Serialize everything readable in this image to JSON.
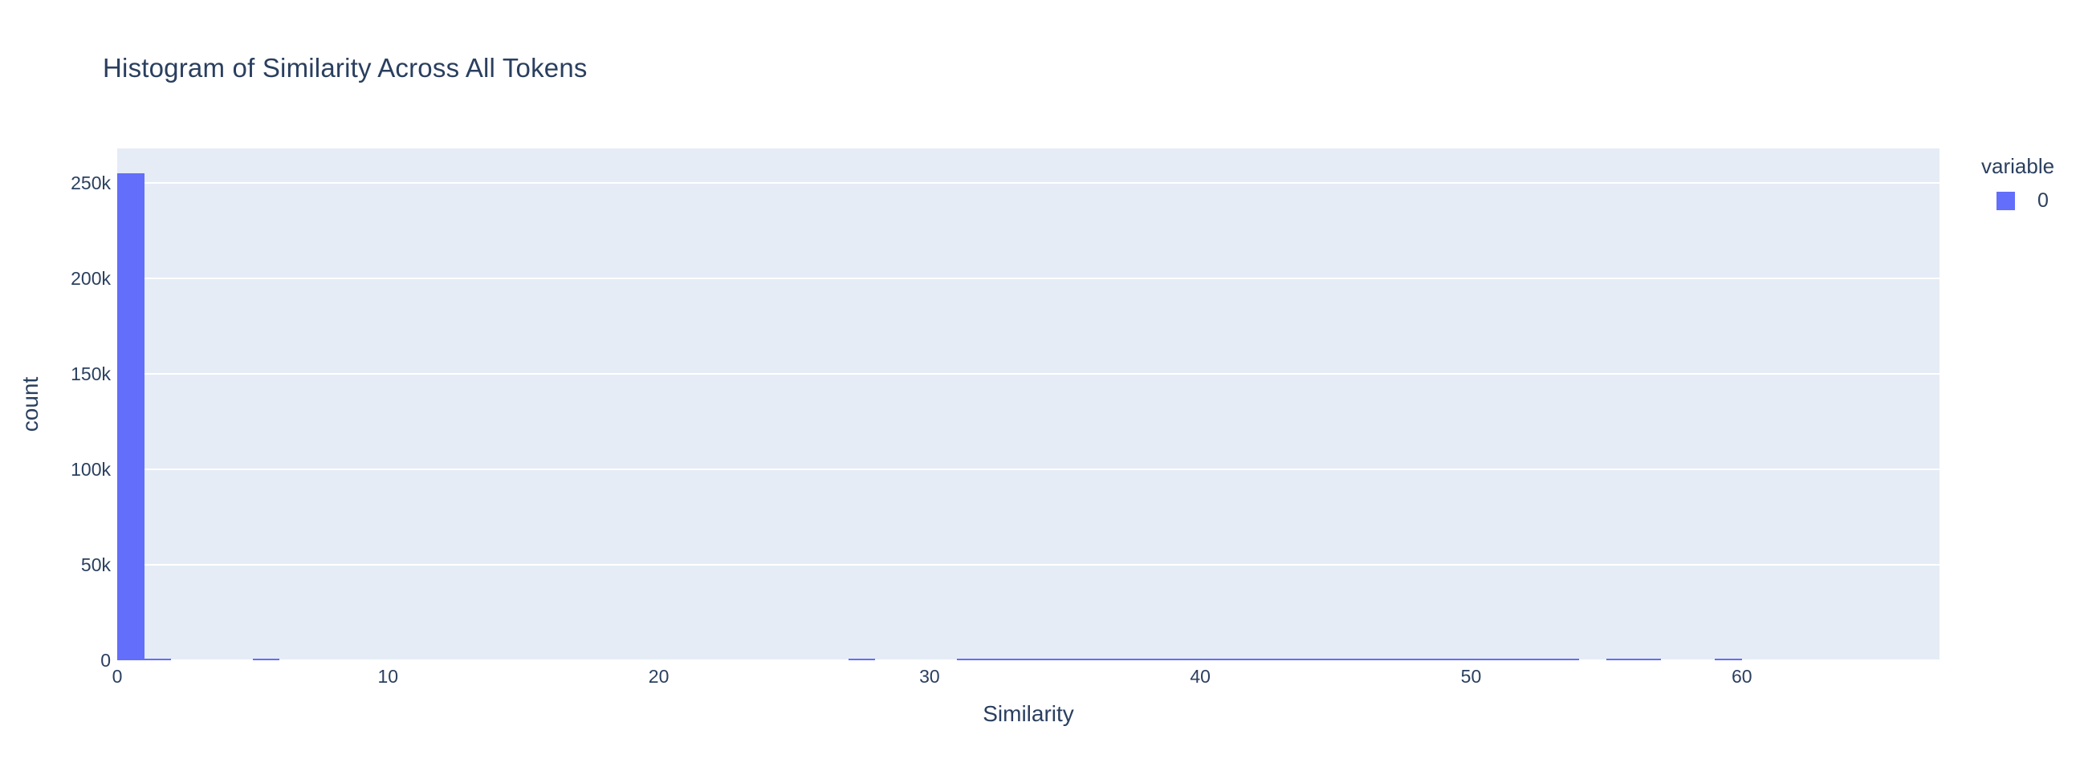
{
  "chart_data": {
    "type": "bar",
    "subtype": "histogram",
    "title": "Histogram of Similarity Across All Tokens",
    "xlabel": "Similarity",
    "ylabel": "count",
    "xlim": [
      0,
      67.3
    ],
    "ylim": [
      0,
      268000
    ],
    "grid": true,
    "legend_position": "top-right-outside",
    "legend": {
      "title": "variable",
      "entries": [
        {
          "label": "0",
          "color": "#636efa"
        }
      ]
    },
    "x_ticks": [
      0,
      10,
      20,
      30,
      40,
      50,
      60
    ],
    "x_tick_labels": [
      "0",
      "10",
      "20",
      "30",
      "40",
      "50",
      "60"
    ],
    "y_ticks": [
      0,
      50000,
      100000,
      150000,
      200000,
      250000
    ],
    "y_tick_labels": [
      "0",
      "50k",
      "100k",
      "150k",
      "200k",
      "250k"
    ],
    "colors": {
      "bar": "#636efa",
      "plot_background": "#e5ecf6",
      "gridline": "#ffffff",
      "text": "#2a3f5f",
      "page_background": "#ffffff"
    },
    "series_name": "0",
    "bins": [
      {
        "start": 0,
        "end": 1,
        "count": 255000
      },
      {
        "start": 1,
        "end": 2,
        "count": 1000
      },
      {
        "start": 5,
        "end": 6,
        "count": 900
      },
      {
        "start": 27,
        "end": 28,
        "count": 800
      },
      {
        "start": 31,
        "end": 32,
        "count": 700
      },
      {
        "start": 32,
        "end": 33,
        "count": 700
      },
      {
        "start": 33,
        "end": 34,
        "count": 700
      },
      {
        "start": 34,
        "end": 35,
        "count": 700
      },
      {
        "start": 35,
        "end": 36,
        "count": 700
      },
      {
        "start": 36,
        "end": 37,
        "count": 700
      },
      {
        "start": 37,
        "end": 38,
        "count": 700
      },
      {
        "start": 38,
        "end": 39,
        "count": 700
      },
      {
        "start": 39,
        "end": 40,
        "count": 700
      },
      {
        "start": 40,
        "end": 41,
        "count": 700
      },
      {
        "start": 41,
        "end": 42,
        "count": 700
      },
      {
        "start": 42,
        "end": 43,
        "count": 700
      },
      {
        "start": 43,
        "end": 44,
        "count": 700
      },
      {
        "start": 44,
        "end": 45,
        "count": 700
      },
      {
        "start": 45,
        "end": 46,
        "count": 700
      },
      {
        "start": 46,
        "end": 47,
        "count": 700
      },
      {
        "start": 47,
        "end": 48,
        "count": 700
      },
      {
        "start": 48,
        "end": 49,
        "count": 700
      },
      {
        "start": 49,
        "end": 50,
        "count": 700
      },
      {
        "start": 50,
        "end": 51,
        "count": 700
      },
      {
        "start": 51,
        "end": 52,
        "count": 700
      },
      {
        "start": 52,
        "end": 53,
        "count": 700
      },
      {
        "start": 53,
        "end": 54,
        "count": 700
      },
      {
        "start": 55,
        "end": 56,
        "count": 700
      },
      {
        "start": 56,
        "end": 57,
        "count": 700
      },
      {
        "start": 59,
        "end": 60,
        "count": 700
      }
    ]
  }
}
